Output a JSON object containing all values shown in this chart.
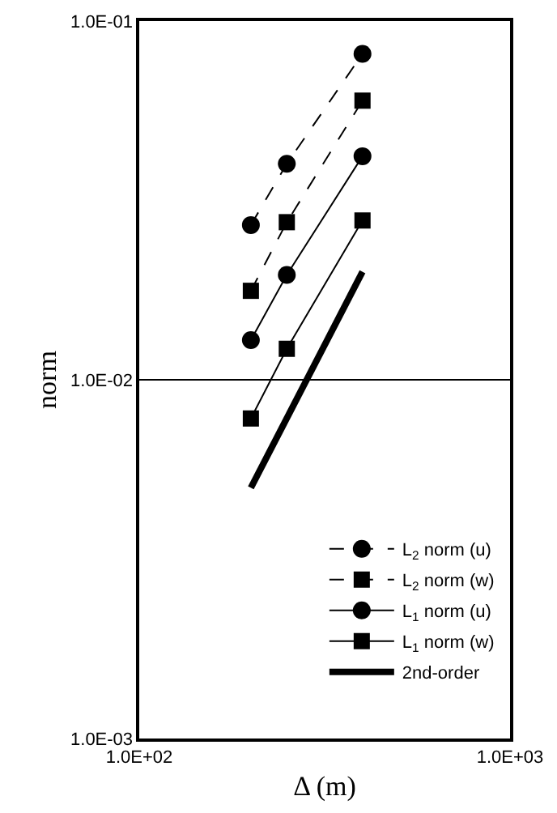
{
  "chart_data": {
    "type": "line",
    "xlabel": "Δ (m)",
    "ylabel": "norm",
    "log": "xy",
    "grid": "y",
    "legend": "bottom right",
    "xlim": [
      100,
      1000
    ],
    "xticks": [
      {
        "value": 100,
        "label": "1.0E+02"
      },
      {
        "value": 1000,
        "label": "1.0E+03"
      }
    ],
    "ylim": [
      0.001,
      0.1
    ],
    "yticks": [
      {
        "value": 0.001,
        "label": "1.0E-03"
      },
      {
        "value": 0.01,
        "label": "1.0E-02"
      },
      {
        "value": 0.1,
        "label": "1.0E-01"
      }
    ],
    "x": [
      200,
      250,
      400
    ],
    "series": [
      {
        "name": "L$_{2}$ norm (u)",
        "color": "#000000",
        "marker": "circle",
        "line_style": "dashed",
        "values": [
          0.027,
          0.04,
          0.081
        ]
      },
      {
        "name": "L$_{2}$ norm (w)",
        "color": "#000000",
        "marker": "square",
        "line_style": "dashed",
        "values": [
          0.0177,
          0.0275,
          0.06
        ]
      },
      {
        "name": "L$_{1}$ norm (u)",
        "color": "#000000",
        "marker": "circle",
        "line_style": "solid",
        "values": [
          0.0129,
          0.0196,
          0.042
        ]
      },
      {
        "name": "L$_{1}$ norm (w)",
        "color": "#000000",
        "marker": "square",
        "line_style": "solid",
        "values": [
          0.0078,
          0.0122,
          0.0278
        ]
      },
      {
        "name": "2nd-order",
        "color": "#000000",
        "marker": "none",
        "line_style": "solid",
        "x": [
          200,
          400
        ],
        "values": [
          0.005,
          0.02
        ]
      }
    ]
  }
}
